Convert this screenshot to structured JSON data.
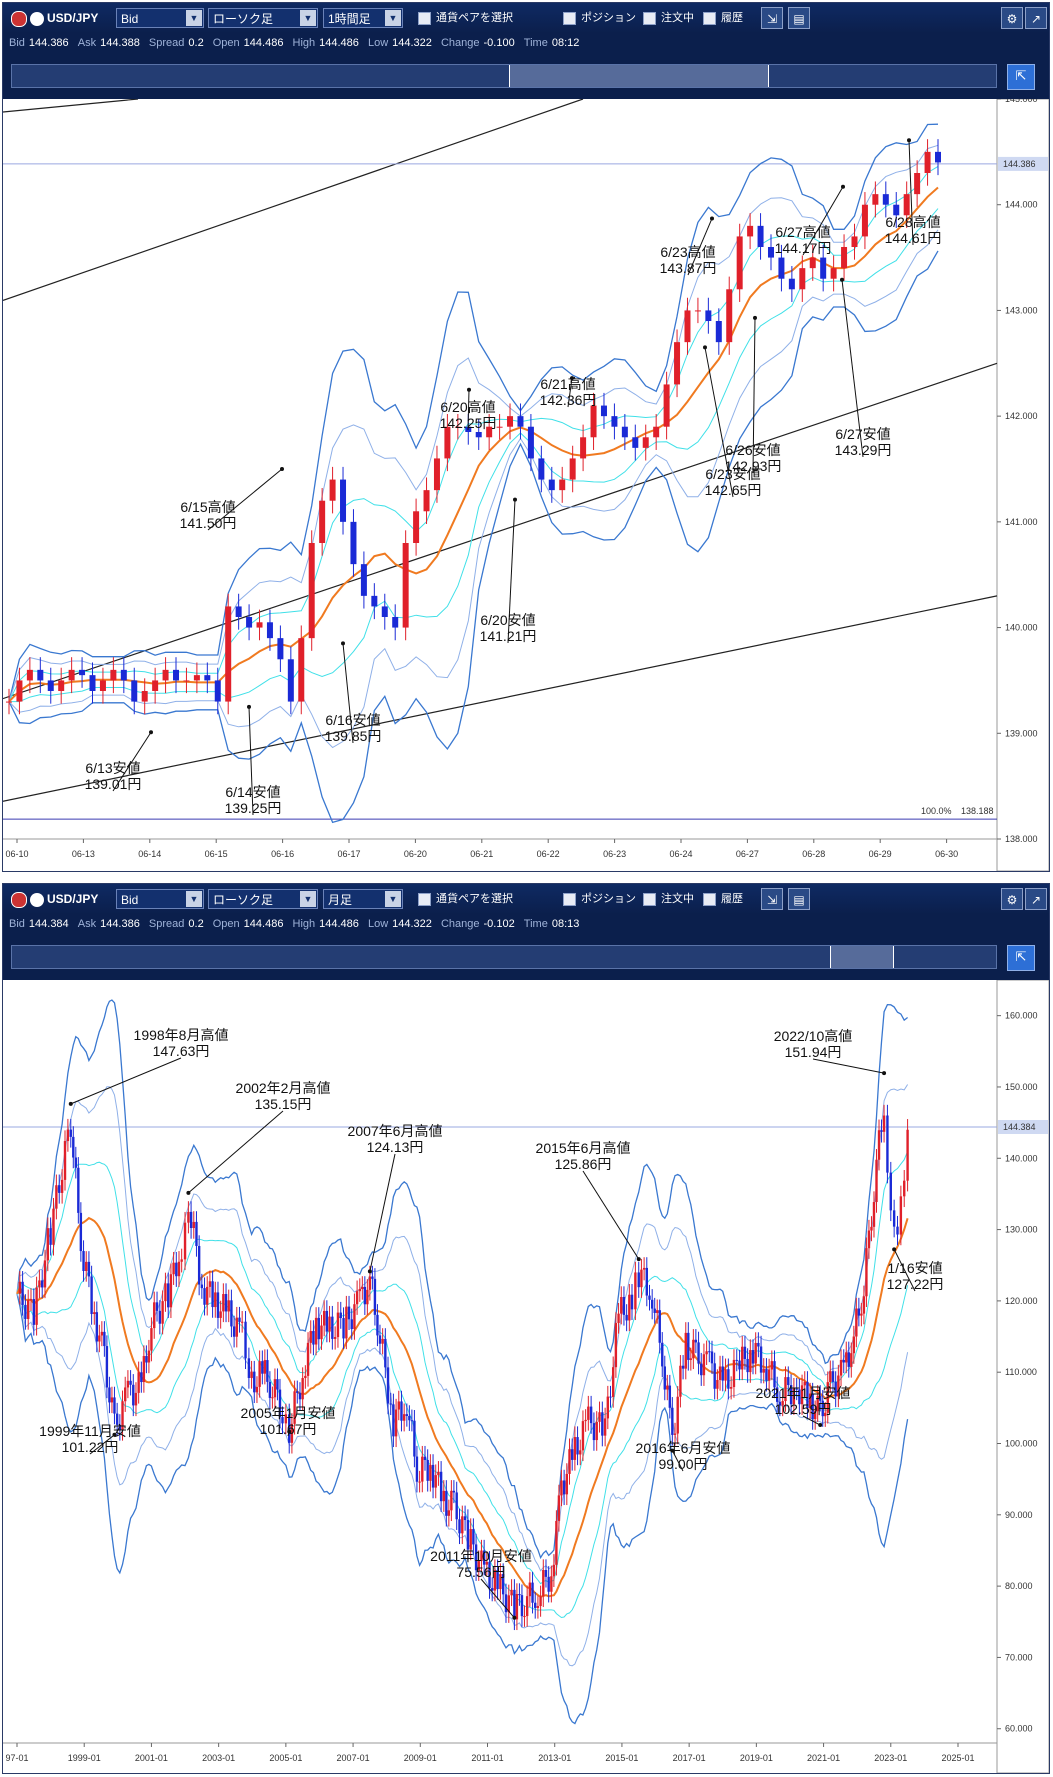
{
  "panels": [
    {
      "pair": "USD/JPY",
      "price_type": "Bid",
      "chart_type": "ローソク足",
      "timeframe": "1時間足",
      "select_pair": "通貨ペアを選択",
      "position": "ポジション",
      "orders": "注文中",
      "history": "履歴",
      "info": {
        "bid_label": "Bid",
        "bid": "144.386",
        "ask_label": "Ask",
        "ask": "144.388",
        "spread_label": "Spread",
        "spread": "0.2",
        "open_label": "Open",
        "open": "144.486",
        "high_label": "High",
        "high": "144.486",
        "low_label": "Low",
        "low": "144.322",
        "change_label": "Change",
        "change": "-0.100",
        "time_label": "Time",
        "time": "08:12"
      },
      "current_price": "144.386",
      "fib_label": "100.0%",
      "fib_value": "138.188"
    },
    {
      "pair": "USD/JPY",
      "price_type": "Bid",
      "chart_type": "ローソク足",
      "timeframe": "月足",
      "select_pair": "通貨ペアを選択",
      "position": "ポジション",
      "orders": "注文中",
      "history": "履歴",
      "info": {
        "bid_label": "Bid",
        "bid": "144.384",
        "ask_label": "Ask",
        "ask": "144.386",
        "spread_label": "Spread",
        "spread": "0.2",
        "open_label": "Open",
        "open": "144.486",
        "high_label": "High",
        "high": "144.486",
        "low_label": "Low",
        "low": "144.322",
        "change_label": "Change",
        "change": "-0.102",
        "time_label": "Time",
        "time": "08:13"
      },
      "current_price": "144.384"
    }
  ],
  "colors": {
    "toolbar": "#0f2a63",
    "candle_up": "#e0202a",
    "candle_down": "#1a2ad6",
    "ma": "#f07a20",
    "band_outer": "#3a78d0",
    "band_mid": "#8fb0e8",
    "band_inner": "#40e0e8"
  },
  "chart_data": [
    {
      "type": "candlestick",
      "timeframe": "1時間足",
      "ylim": [
        138.0,
        145.0
      ],
      "yticks": [
        "145.000",
        "144.000",
        "143.000",
        "142.000",
        "141.000",
        "140.000",
        "139.000",
        "138.000"
      ],
      "xticks": [
        "06-10",
        "06-13",
        "06-14",
        "06-15",
        "06-16",
        "06-17",
        "06-20",
        "06-21",
        "06-22",
        "06-23",
        "06-24",
        "06-27",
        "06-28",
        "06-29",
        "06-30"
      ],
      "close": [
        139.3,
        139.5,
        139.6,
        139.5,
        139.4,
        139.5,
        139.6,
        139.55,
        139.4,
        139.5,
        139.6,
        139.5,
        139.3,
        139.4,
        139.5,
        139.6,
        139.5,
        139.5,
        139.55,
        139.5,
        139.3,
        140.2,
        140.1,
        140.0,
        140.05,
        139.9,
        139.7,
        139.3,
        139.9,
        140.8,
        141.2,
        141.4,
        141.0,
        140.6,
        140.3,
        140.2,
        140.1,
        140.0,
        140.8,
        141.1,
        141.3,
        141.6,
        141.9,
        141.9,
        141.85,
        141.8,
        141.9,
        141.9,
        142.0,
        141.9,
        141.6,
        141.4,
        141.3,
        141.4,
        141.6,
        141.8,
        142.1,
        142.0,
        141.9,
        141.8,
        141.7,
        141.8,
        141.9,
        142.3,
        142.7,
        143.0,
        143.0,
        142.9,
        142.7,
        143.2,
        143.7,
        143.8,
        143.6,
        143.5,
        143.3,
        143.2,
        143.4,
        143.5,
        143.3,
        143.4,
        143.6,
        143.7,
        144.0,
        144.1,
        144.0,
        143.9,
        144.1,
        144.3,
        144.5,
        144.4
      ],
      "xrange_points": 90,
      "annotations": [
        {
          "label": "6/13安値",
          "value": "139.01円"
        },
        {
          "label": "6/14安値",
          "value": "139.25円"
        },
        {
          "label": "6/15高値",
          "value": "141.50円"
        },
        {
          "label": "6/16安値",
          "value": "139.85円"
        },
        {
          "label": "6/20高値",
          "value": "142.25円"
        },
        {
          "label": "6/20安値",
          "value": "141.21円"
        },
        {
          "label": "6/21高値",
          "value": "142.36円"
        },
        {
          "label": "6/23高値",
          "value": "143.87円"
        },
        {
          "label": "6/23安値",
          "value": "142.65円"
        },
        {
          "label": "6/26安値",
          "value": "142.93円"
        },
        {
          "label": "6/27高値",
          "value": "144.17円"
        },
        {
          "label": "6/27安値",
          "value": "143.29円"
        },
        {
          "label": "6/28高値",
          "value": "144.61円"
        }
      ]
    },
    {
      "type": "candlestick",
      "timeframe": "月足",
      "ylim": [
        58.0,
        165.0
      ],
      "yticks": [
        "160.000",
        "150.000",
        "140.000",
        "130.000",
        "120.000",
        "110.000",
        "100.000",
        "90.000",
        "80.000",
        "70.000",
        "60.000"
      ],
      "xticks": [
        "97-01",
        "1999-01",
        "2001-01",
        "2003-01",
        "2005-01",
        "2007-01",
        "2009-01",
        "2011-01",
        "2013-01",
        "2015-01",
        "2017-01",
        "2019-01",
        "2021-01",
        "2023-01",
        "2025-01"
      ],
      "close_series": [
        [
          1997.0,
          121
        ],
        [
          1997.5,
          118
        ],
        [
          1998.0,
          130
        ],
        [
          1998.6,
          145
        ],
        [
          1998.9,
          128
        ],
        [
          1999.3,
          118
        ],
        [
          1999.6,
          112
        ],
        [
          1999.9,
          102
        ],
        [
          2000.3,
          107
        ],
        [
          2000.7,
          108
        ],
        [
          2001.0,
          117
        ],
        [
          2001.5,
          121
        ],
        [
          2001.9,
          128
        ],
        [
          2002.1,
          134
        ],
        [
          2002.5,
          122
        ],
        [
          2002.9,
          120
        ],
        [
          2003.3,
          118
        ],
        [
          2003.7,
          115
        ],
        [
          2003.9,
          108
        ],
        [
          2004.3,
          110
        ],
        [
          2004.6,
          108
        ],
        [
          2004.9,
          105
        ],
        [
          2005.1,
          102
        ],
        [
          2005.5,
          110
        ],
        [
          2005.9,
          117
        ],
        [
          2006.3,
          116
        ],
        [
          2006.8,
          117
        ],
        [
          2007.2,
          120
        ],
        [
          2007.5,
          123
        ],
        [
          2007.8,
          115
        ],
        [
          2008.2,
          103
        ],
        [
          2008.6,
          106
        ],
        [
          2008.9,
          96
        ],
        [
          2009.3,
          97
        ],
        [
          2009.7,
          92
        ],
        [
          2010.0,
          91
        ],
        [
          2010.5,
          86
        ],
        [
          2010.9,
          82
        ],
        [
          2011.3,
          80
        ],
        [
          2011.8,
          77
        ],
        [
          2012.1,
          78
        ],
        [
          2012.5,
          79
        ],
        [
          2012.9,
          82
        ],
        [
          2013.2,
          94
        ],
        [
          2013.6,
          99
        ],
        [
          2014.0,
          103
        ],
        [
          2014.5,
          102
        ],
        [
          2014.9,
          118
        ],
        [
          2015.3,
          120
        ],
        [
          2015.5,
          124
        ],
        [
          2015.9,
          121
        ],
        [
          2016.2,
          112
        ],
        [
          2016.5,
          101
        ],
        [
          2016.9,
          114
        ],
        [
          2017.2,
          112
        ],
        [
          2017.6,
          111
        ],
        [
          2018.0,
          108
        ],
        [
          2018.5,
          111
        ],
        [
          2018.9,
          113
        ],
        [
          2019.3,
          111
        ],
        [
          2019.7,
          107
        ],
        [
          2020.2,
          108
        ],
        [
          2020.6,
          106
        ],
        [
          2020.9,
          104
        ],
        [
          2021.2,
          108
        ],
        [
          2021.6,
          110
        ],
        [
          2021.9,
          115
        ],
        [
          2022.2,
          122
        ],
        [
          2022.5,
          136
        ],
        [
          2022.8,
          148
        ],
        [
          2022.9,
          139
        ],
        [
          2023.1,
          130
        ],
        [
          2023.3,
          133
        ],
        [
          2023.5,
          144
        ]
      ],
      "annotations": [
        {
          "label": "1998年8月高値",
          "value": "147.63円"
        },
        {
          "label": "1999年11月安値",
          "value": "101.22円"
        },
        {
          "label": "2002年2月高値",
          "value": "135.15円"
        },
        {
          "label": "2005年1月安値",
          "value": "101.67円"
        },
        {
          "label": "2007年6月高値",
          "value": "124.13円"
        },
        {
          "label": "2011年10月安値",
          "value": "75.56円"
        },
        {
          "label": "2015年6月高値",
          "value": "125.86円"
        },
        {
          "label": "2016年6月安値",
          "value": "99.00円"
        },
        {
          "label": "2021年1月安値",
          "value": "102.59円"
        },
        {
          "label": "2022/10高値",
          "value": "151.94円"
        },
        {
          "label": "1/16安値",
          "value": "127.22円"
        }
      ]
    }
  ]
}
